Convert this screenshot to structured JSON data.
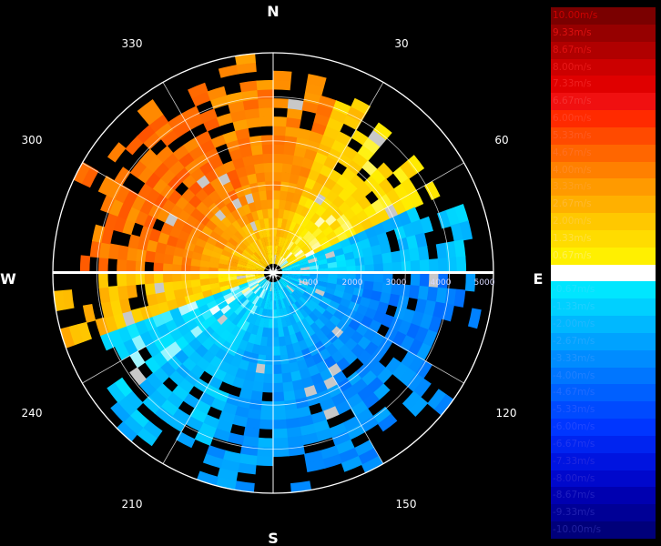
{
  "chart_data": {
    "type": "polar-radar-ppi",
    "title": "",
    "cardinals": [
      "N",
      "E",
      "S",
      "W"
    ],
    "bearing_labels": [
      "30",
      "60",
      "120",
      "150",
      "210",
      "240",
      "300",
      "330"
    ],
    "range_labels": [
      "1000",
      "2000",
      "3000",
      "4000",
      "5000"
    ],
    "range_max": 5000,
    "azimuth_bins": 72,
    "range_bins": 24,
    "sectors": [
      {
        "az_start": 0,
        "az_end": 20,
        "velocity": 3.8,
        "max_range": 4600
      },
      {
        "az_start": 20,
        "az_end": 35,
        "velocity": 2.0,
        "max_range": 4300
      },
      {
        "az_start": 35,
        "az_end": 65,
        "velocity": 1.2,
        "max_range": 3900
      },
      {
        "az_start": 65,
        "az_end": 90,
        "velocity": -1.8,
        "max_range": 4500
      },
      {
        "az_start": 90,
        "az_end": 125,
        "velocity": -3.6,
        "max_range": 4700
      },
      {
        "az_start": 125,
        "az_end": 160,
        "velocity": -3.3,
        "max_range": 4900
      },
      {
        "az_start": 160,
        "az_end": 200,
        "velocity": -2.8,
        "max_range": 4900
      },
      {
        "az_start": 200,
        "az_end": 230,
        "velocity": -1.9,
        "max_range": 4700
      },
      {
        "az_start": 230,
        "az_end": 250,
        "velocity": -1.0,
        "max_range": 4300
      },
      {
        "az_start": 250,
        "az_end": 270,
        "velocity": 2.2,
        "max_range": 5000
      },
      {
        "az_start": 270,
        "az_end": 300,
        "velocity": 4.2,
        "max_range": 4700
      },
      {
        "az_start": 300,
        "az_end": 340,
        "velocity": 4.4,
        "max_range": 4600
      },
      {
        "az_start": 340,
        "az_end": 360,
        "velocity": 3.9,
        "max_range": 4800
      }
    ],
    "legend": [
      {
        "label": "10.00m/s",
        "color": "#7a0000",
        "text_color": "#cc0000"
      },
      {
        "label": "9.33m/s",
        "color": "#960000",
        "text_color": "#dd1010"
      },
      {
        "label": "8.67m/s",
        "color": "#b00000",
        "text_color": "#e01010"
      },
      {
        "label": "8.00m/s",
        "color": "#cc0000",
        "text_color": "#e81818"
      },
      {
        "label": "7.33m/s",
        "color": "#e00000",
        "text_color": "#f02020"
      },
      {
        "label": "6.67m/s",
        "color": "#f01010",
        "text_color": "#f53030"
      },
      {
        "label": "6.00m/s",
        "color": "#ff2a00",
        "text_color": "#ff4020"
      },
      {
        "label": "5.33m/s",
        "color": "#ff4a00",
        "text_color": "#ff5a20"
      },
      {
        "label": "4.67m/s",
        "color": "#ff6600",
        "text_color": "#ff7020"
      },
      {
        "label": "4.00m/s",
        "color": "#ff8000",
        "text_color": "#ff8a20"
      },
      {
        "label": "3.33m/s",
        "color": "#ff9a00",
        "text_color": "#ffa020"
      },
      {
        "label": "2.67m/s",
        "color": "#ffb000",
        "text_color": "#ffb830"
      },
      {
        "label": "2.00m/s",
        "color": "#ffc800",
        "text_color": "#ffcc30"
      },
      {
        "label": "1.33m/s",
        "color": "#ffdc00",
        "text_color": "#ffe040"
      },
      {
        "label": "0.67m/s",
        "color": "#fff000",
        "text_color": "#fff050"
      },
      {
        "label": "0.00m/s",
        "color": "#ffffff",
        "text_color": "#ffffff"
      },
      {
        "label": "-0.67m/s",
        "color": "#00e6ff",
        "text_color": "#20e0ff"
      },
      {
        "label": "-1.33m/s",
        "color": "#00d0ff",
        "text_color": "#20d0ff"
      },
      {
        "label": "-2.00m/s",
        "color": "#00b8ff",
        "text_color": "#20b8ff"
      },
      {
        "label": "-2.67m/s",
        "color": "#00a2ff",
        "text_color": "#20a8ff"
      },
      {
        "label": "-3.33m/s",
        "color": "#008cff",
        "text_color": "#2094ff"
      },
      {
        "label": "-4.00m/s",
        "color": "#0076ff",
        "text_color": "#2080ff"
      },
      {
        "label": "-4.67m/s",
        "color": "#0060ff",
        "text_color": "#206cff"
      },
      {
        "label": "-5.33m/s",
        "color": "#004aff",
        "text_color": "#2058ff"
      },
      {
        "label": "-6.00m/s",
        "color": "#0036ff",
        "text_color": "#2048ff"
      },
      {
        "label": "-6.67m/s",
        "color": "#0024f0",
        "text_color": "#2038f0"
      },
      {
        "label": "-7.33m/s",
        "color": "#0014e0",
        "text_color": "#2028e0"
      },
      {
        "label": "-8.00m/s",
        "color": "#0008cc",
        "text_color": "#2020d0"
      },
      {
        "label": "-8.67m/s",
        "color": "#0000b0",
        "text_color": "#2020c0"
      },
      {
        "label": "-9.33m/s",
        "color": "#000096",
        "text_color": "#2020b0"
      },
      {
        "label": "-10.00m/s",
        "color": "#00007a",
        "text_color": "#2020a0"
      }
    ]
  }
}
